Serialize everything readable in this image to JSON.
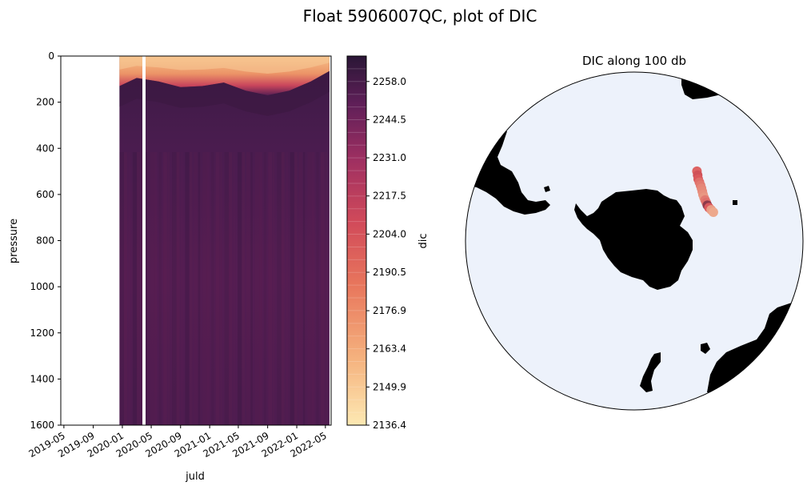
{
  "figure": {
    "suptitle": "Float 5906007QC, plot of DIC"
  },
  "chart_data": [
    {
      "type": "heatmap",
      "title": "",
      "xlabel": "juld",
      "ylabel": "pressure",
      "ylim": [
        1600,
        0
      ],
      "x_tick_labels": [
        "2019-05",
        "2019-09",
        "2020-01",
        "2020-05",
        "2020-09",
        "2021-01",
        "2021-05",
        "2021-09",
        "2022-01",
        "2022-05"
      ],
      "y_tick_labels": [
        "0",
        "200",
        "400",
        "600",
        "800",
        "1000",
        "1200",
        "1400",
        "1600"
      ],
      "y_ticks": [
        0,
        200,
        400,
        600,
        800,
        1000,
        1200,
        1400,
        1600
      ],
      "data_start": "2019-12-20",
      "gap": [
        "2020-03-25",
        "2020-04-04"
      ],
      "data_end": "2022-05-18",
      "mixed_layer_depth_profile": {
        "dates": [
          "2019-12-20",
          "2020-03-01",
          "2020-06-01",
          "2020-09-01",
          "2020-12-01",
          "2021-03-01",
          "2021-06-01",
          "2021-09-01",
          "2021-12-01",
          "2022-03-01",
          "2022-05-18"
        ],
        "depth": [
          130,
          95,
          110,
          135,
          130,
          115,
          150,
          170,
          150,
          110,
          65
        ]
      },
      "colormap": "flare-reversed (cream to dark purple)",
      "colorbar": {
        "label": "dic",
        "min": 2136.4,
        "max": 2267.0,
        "tick_labels": [
          "2258.0",
          "2244.5",
          "2231.0",
          "2217.5",
          "2204.0",
          "2190.5",
          "2176.9",
          "2163.4",
          "2149.9",
          "2136.4"
        ],
        "ticks": [
          2258.0,
          2244.5,
          2231.0,
          2217.5,
          2204.0,
          2190.5,
          2176.9,
          2163.4,
          2149.9,
          2136.4
        ],
        "color_low": "#fde9b3",
        "color_mid": "#d9545a",
        "color_high": "#2a1636"
      }
    },
    {
      "type": "scatter",
      "title": "DIC along 100 db",
      "projection": "south polar stereographic",
      "land_color": "#000000",
      "ocean_color": "#edf2fb",
      "track": {
        "lon": [
          42,
          44,
          46,
          48,
          50,
          52,
          54,
          56,
          58,
          60,
          62,
          64,
          66,
          68,
          70
        ],
        "lat": [
          -47.5,
          -48.5,
          -49.5,
          -50.0,
          -50.5,
          -51.0,
          -51.5,
          -52.0,
          -52.3,
          -52.5,
          -52.6,
          -52.7,
          -52.5,
          -52.0,
          -51.5
        ],
        "dic": [
          2195,
          2205,
          2200,
          2190,
          2185,
          2180,
          2178,
          2175,
          2172,
          2185,
          2190,
          2230,
          2200,
          2170,
          2165
        ]
      }
    }
  ]
}
